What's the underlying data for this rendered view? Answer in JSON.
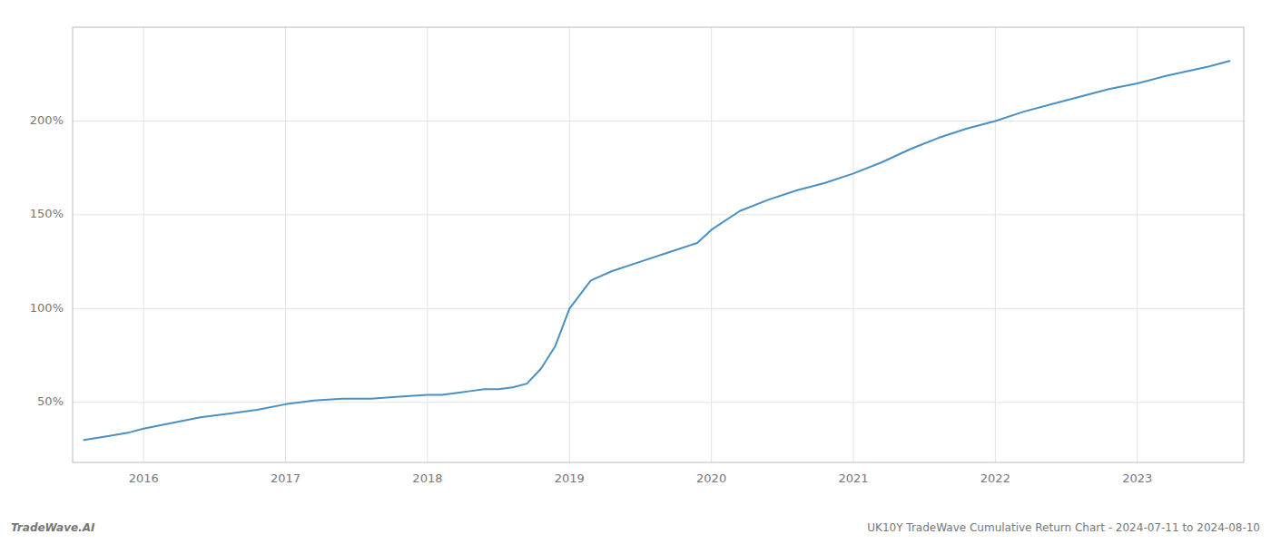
{
  "chart_data": {
    "type": "line",
    "annotations": [
      "TradeWave.AI",
      "UK10Y TradeWave Cumulative Return Chart - 2024-07-11 to 2024-08-10"
    ],
    "x": [
      2015.58,
      2015.75,
      2015.9,
      2016.0,
      2016.2,
      2016.4,
      2016.6,
      2016.8,
      2017.0,
      2017.2,
      2017.4,
      2017.6,
      2017.8,
      2018.0,
      2018.1,
      2018.2,
      2018.3,
      2018.4,
      2018.5,
      2018.6,
      2018.7,
      2018.8,
      2018.9,
      2019.0,
      2019.15,
      2019.3,
      2019.5,
      2019.7,
      2019.9,
      2020.0,
      2020.2,
      2020.4,
      2020.6,
      2020.8,
      2021.0,
      2021.2,
      2021.4,
      2021.6,
      2021.8,
      2022.0,
      2022.2,
      2022.4,
      2022.6,
      2022.8,
      2023.0,
      2023.2,
      2023.5,
      2023.65
    ],
    "values": [
      30,
      32,
      34,
      36,
      39,
      42,
      44,
      46,
      49,
      51,
      52,
      52,
      53,
      54,
      54,
      55,
      56,
      57,
      57,
      58,
      60,
      68,
      80,
      100,
      115,
      120,
      125,
      130,
      135,
      142,
      152,
      158,
      163,
      167,
      172,
      178,
      185,
      191,
      196,
      200,
      205,
      209,
      213,
      217,
      220,
      224,
      229,
      232
    ],
    "color": "#4a90c4",
    "xlim": [
      2015.5,
      2023.75
    ],
    "xticks": [
      2016,
      2017,
      2018,
      2019,
      2020,
      2021,
      2022,
      2023
    ],
    "ylim": [
      18,
      250
    ],
    "yticks": [
      {
        "value": 50,
        "label": "50%"
      },
      {
        "value": 100,
        "label": "100%"
      },
      {
        "value": 150,
        "label": "150%"
      },
      {
        "value": 200,
        "label": "200%"
      }
    ],
    "grid": true
  }
}
